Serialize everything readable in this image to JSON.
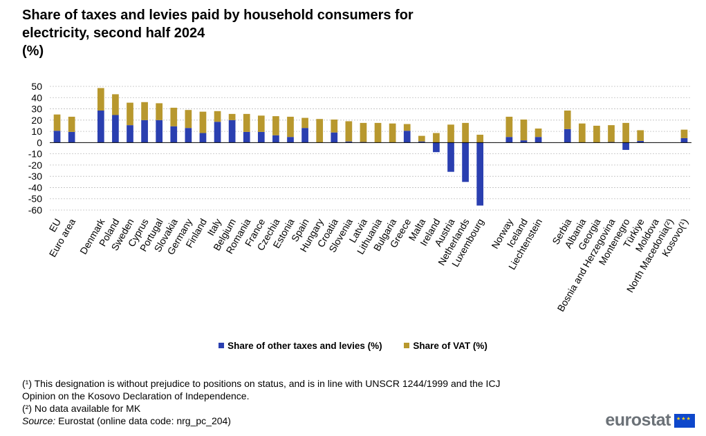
{
  "title": {
    "line1": "Share of taxes and levies paid by household consumers for",
    "line2": "electricity, second half 2024",
    "line3": "(%)"
  },
  "colors": {
    "other_taxes": "#2a3fb0",
    "vat": "#b8982e",
    "grid": "#bdbdbd"
  },
  "chart_data": {
    "type": "bar",
    "stacked": true,
    "title": "Share of taxes and levies paid by household consumers for electricity, second half 2024 (%)",
    "xlabel": "",
    "ylabel": "",
    "ylim": [
      -60,
      50
    ],
    "yticks": [
      50,
      40,
      30,
      20,
      10,
      0,
      -10,
      -20,
      -30,
      -40,
      -50,
      -60
    ],
    "grid": true,
    "legend_position": "bottom",
    "categories": [
      "EU",
      "Euro area",
      "Denmark",
      "Poland",
      "Sweden",
      "Cyprus",
      "Portugal",
      "Slovakia",
      "Germany",
      "Finland",
      "Italy",
      "Belgium",
      "Romania",
      "France",
      "Czechia",
      "Estonia",
      "Spain",
      "Hungary",
      "Croatia",
      "Slovenia",
      "Latvia",
      "Lithuania",
      "Bulgaria",
      "Greece",
      "Malta",
      "Ireland",
      "Austria",
      "Netherlands",
      "Luxembourg",
      "Norway",
      "Iceland",
      "Liechtenstein",
      "Serbia",
      "Albania",
      "Georgia",
      "Bosnia and Herzegovina",
      "Montenegro",
      "Türkiye",
      "Moldova",
      "North Macedonia(²)",
      "Kosovo(¹)"
    ],
    "groups": [
      2,
      27,
      3,
      9
    ],
    "series": [
      {
        "name": "Share of other taxes and levies (%)",
        "values": [
          10.5,
          9.5,
          28.5,
          24.5,
          15.5,
          20,
          20,
          14.5,
          13,
          8.5,
          18.5,
          20,
          9.5,
          9.5,
          6.5,
          5,
          13,
          0,
          9,
          1,
          0.5,
          0,
          0,
          10.5,
          1,
          -8.5,
          -26,
          -35,
          -56,
          5,
          2,
          5,
          12,
          0,
          0,
          0.5,
          -6.5,
          1.5,
          0,
          0,
          4
        ]
      },
      {
        "name": "Share of VAT (%)",
        "values": [
          14.5,
          13.5,
          20,
          18.5,
          20,
          16,
          15,
          16.5,
          16,
          19,
          9.5,
          5.5,
          16,
          14.5,
          17,
          18,
          9,
          21,
          11.5,
          18,
          17,
          17.5,
          17,
          6,
          5,
          8.5,
          16,
          17.5,
          7,
          18,
          18.5,
          7.5,
          16.5,
          17,
          15,
          15,
          17.5,
          9.5,
          0,
          0,
          7.5
        ]
      }
    ]
  },
  "legend": {
    "other_taxes": "Share of other taxes and levies (%)",
    "vat": "Share of VAT (%)"
  },
  "notes": {
    "n1a": "(¹) This designation is without  prejudice to positions on status, and is in line with UNSCR 1244/1999 and the ICJ",
    "n1b": "Opinion on the Kosovo Declaration of Independence.",
    "n2": "(²) No data available for MK",
    "source_label": "Source:",
    "source_text": " Eurostat (online data code: nrg_pc_204)"
  },
  "logo": {
    "text": "eurostat"
  }
}
